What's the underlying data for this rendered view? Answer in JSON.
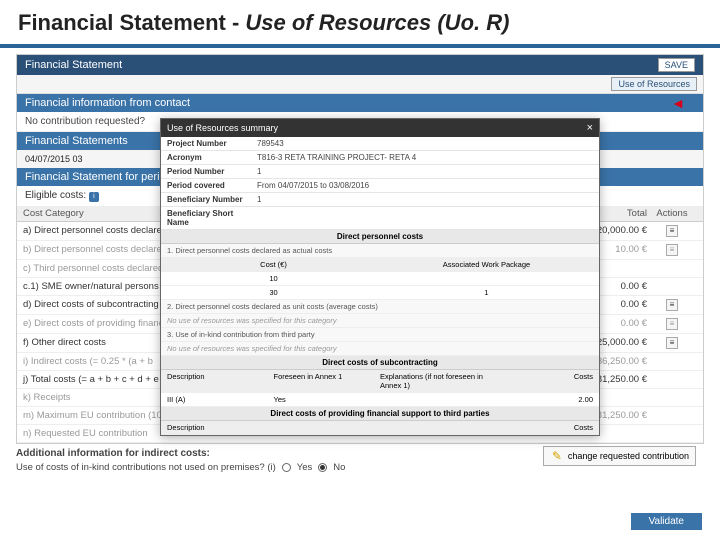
{
  "slide": {
    "title_plain": "Financial Statement - ",
    "title_italic": "Use of Resources (Uo. R)"
  },
  "colors": {
    "header_blue": "#3a73a8",
    "dark_blue": "#2a5078",
    "arrow_red": "#d9001b"
  },
  "panel": {
    "title": "Financial Statement",
    "save_label": "SAVE",
    "uor_label": "Use of Resources",
    "sec_contact": "Financial information from contact",
    "no_contrib": "No contribution requested?",
    "sec_statements": "Financial Statements",
    "date": "04/07/2015   03",
    "sec_period": "Financial Statement for period '1'",
    "eligible": "Eligible costs:"
  },
  "modal": {
    "title": "Use of Resources summary",
    "rows": {
      "project_number": {
        "label": "Project Number",
        "value": "789543"
      },
      "acronym": {
        "label": "Acronym",
        "value": "T816-3 RETA TRAINING PROJECT- RETA 4"
      },
      "period_number": {
        "label": "Period Number",
        "value": "1"
      },
      "period_covered": {
        "label": "Period covered",
        "value": "From 04/07/2015 to 03/08/2016"
      },
      "beneficiary_number": {
        "label": "Beneficiary Number",
        "value": "1"
      },
      "beneficiary_name": {
        "label": "Beneficiary Short Name",
        "value": ""
      }
    },
    "sec_personnel": "Direct personnel costs",
    "sub_actual": "1. Direct personnel costs declared as actual costs",
    "grid_hdr": {
      "a": "Cost (€)",
      "b": "Associated Work Package"
    },
    "grid1": {
      "a": "10",
      "b": ""
    },
    "grid2": {
      "a": "30",
      "b": "1"
    },
    "sub_unit": "2. Direct personnel costs declared as unit costs (average costs)",
    "note_unit": "No use of resources was specified for this category",
    "sub_inkind": "3. Use of in-kind contribution from third party",
    "note_inkind": "No use of resources was specified for this category",
    "sec_subcontract": "Direct costs of subcontracting",
    "sub_hdr": {
      "a": "Description",
      "b": "Foreseen in Annex 1",
      "c": "Explanations (if not foreseen in Annex 1)",
      "d": "Costs"
    },
    "sub_row": {
      "a": "III (A)",
      "b": "Yes",
      "c": "",
      "d": "2.00"
    },
    "sec_third": "Direct costs of providing financial support to third parties",
    "third_hdr": {
      "a": "Description",
      "b": "Costs"
    }
  },
  "costs": {
    "head": {
      "category": "Cost Category",
      "total": "Total",
      "actions": "Actions"
    },
    "rows": [
      {
        "label": "a) Direct personnel costs declared",
        "total": "20,000.00 €",
        "dim": false,
        "action": true
      },
      {
        "label": "b) Direct personnel costs declared",
        "total": "10.00 €",
        "dim": true,
        "action": true
      },
      {
        "label": "c) Third personnel costs declared",
        "total": "",
        "dim": true,
        "action": false
      },
      {
        "label": "   c.1) SME owner/natural persons",
        "total": "0.00 €",
        "dim": false,
        "action": false
      },
      {
        "label": "d) Direct costs of subcontracting",
        "total": "0.00 €",
        "dim": false,
        "action": true
      },
      {
        "label": "e) Direct costs of providing financial",
        "total": "0.00 €",
        "dim": true,
        "action": true
      },
      {
        "label": "f) Other direct costs",
        "total": "25,000.00 €",
        "dim": false,
        "action": true
      },
      {
        "label": "i) Indirect costs (= 0.25 * (a + b",
        "total": "36,250.00 €",
        "dim": true,
        "action": false
      },
      {
        "label": "j) Total costs (= a + b + c + d + e",
        "total": "181,250.00 €",
        "dim": false,
        "action": false
      },
      {
        "label": "k) Receipts",
        "total": "",
        "dim": true,
        "action": false
      },
      {
        "label": "m) Maximum EU contribution (100%)",
        "total": "181,250.00 €",
        "dim": true,
        "action": false
      },
      {
        "label": "n) Requested EU contribution",
        "total": "",
        "dim": true,
        "action": false
      }
    ]
  },
  "change_requested": "change requested contribution",
  "additional": {
    "title": "Additional information for indirect costs:",
    "question": "Use of costs of in-kind contributions not used on premises? (i)",
    "yes": "Yes",
    "no": "No"
  },
  "validate": "Validate"
}
